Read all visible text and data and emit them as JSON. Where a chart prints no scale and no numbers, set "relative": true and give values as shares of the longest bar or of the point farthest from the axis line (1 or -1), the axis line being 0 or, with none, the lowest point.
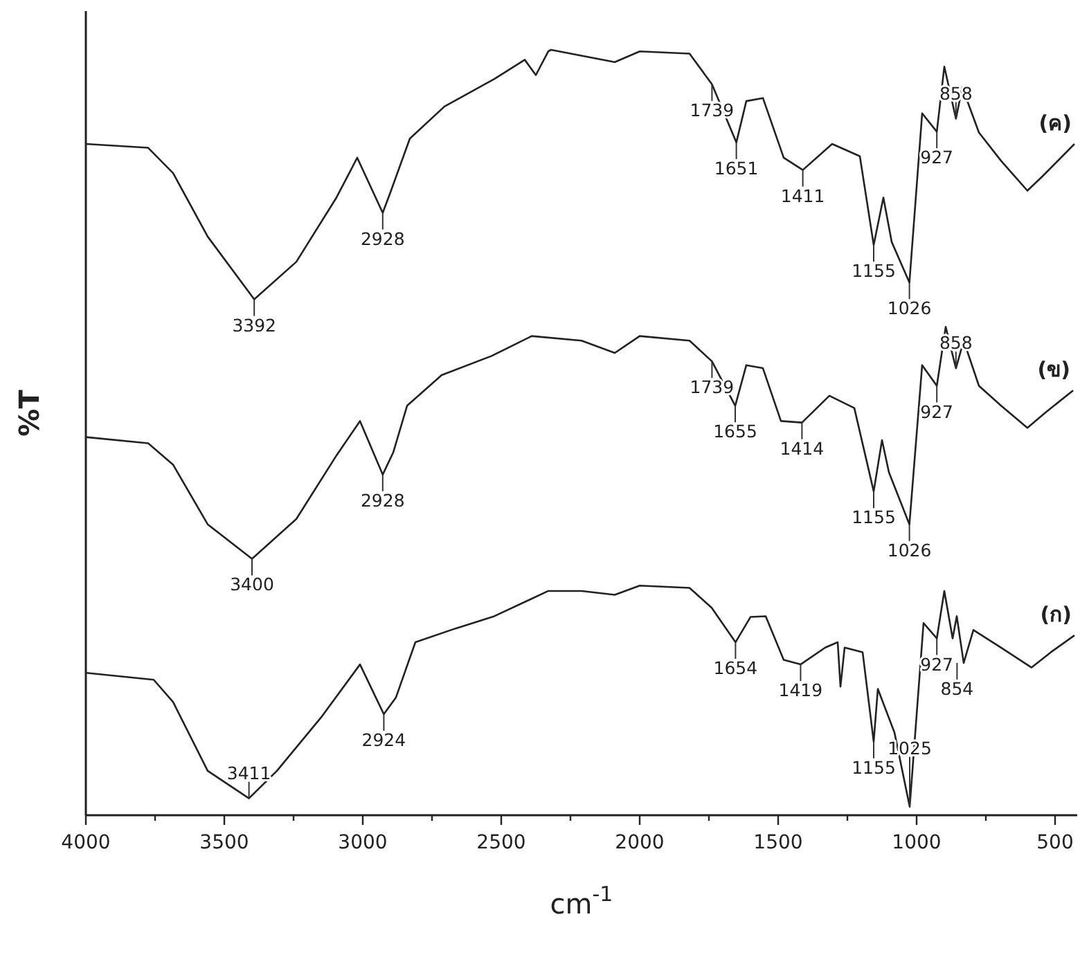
{
  "chart_data": {
    "type": "line",
    "relative": true,
    "xlabel": "cm$^{-1}$",
    "ylabel": "%T",
    "xlim": [
      4000,
      420
    ],
    "xticks": [
      4000,
      {
        "value": 3750,
        "label": null
      },
      3500,
      {
        "value": 3250,
        "label": null
      },
      3000,
      {
        "value": 2750,
        "label": null
      },
      2500,
      {
        "value": 2250,
        "label": null
      },
      2000,
      {
        "value": 1750,
        "label": null
      },
      1500,
      {
        "value": 1250,
        "label": null
      },
      1000,
      {
        "value": 750,
        "label": null
      },
      500
    ],
    "series": [
      {
        "name": "(ค)",
        "color": "#222222",
        "x": [
          4000,
          3775,
          3685,
          3560,
          3392,
          3240,
          3095,
          3020,
          2928,
          2900,
          2830,
          2705,
          2525,
          2415,
          2375,
          2330,
          2320,
          2090,
          2000,
          1820,
          1739,
          1651,
          1615,
          1555,
          1480,
          1411,
          1305,
          1205,
          1155,
          1120,
          1090,
          1026,
          980,
          927,
          900,
          858,
          835,
          775,
          695,
          600,
          545,
          430
        ],
        "values": [
          0.877,
          0.872,
          0.839,
          0.756,
          0.674,
          0.723,
          0.807,
          0.859,
          0.787,
          0.814,
          0.884,
          0.926,
          0.962,
          0.987,
          0.967,
          0.998,
          1.0,
          0.984,
          0.998,
          0.995,
          0.955,
          0.879,
          0.933,
          0.937,
          0.859,
          0.843,
          0.877,
          0.861,
          0.745,
          0.807,
          0.749,
          0.696,
          0.917,
          0.893,
          0.978,
          0.91,
          0.951,
          0.892,
          0.855,
          0.816,
          0.835,
          0.877
        ]
      },
      {
        "name": "(ข)",
        "color": "#222222",
        "x": [
          4000,
          3775,
          3685,
          3560,
          3400,
          3240,
          3095,
          3010,
          2928,
          2890,
          2840,
          2715,
          2535,
          2390,
          2210,
          2090,
          2000,
          1820,
          1739,
          1655,
          1615,
          1555,
          1490,
          1414,
          1315,
          1225,
          1155,
          1125,
          1100,
          1026,
          980,
          927,
          895,
          858,
          830,
          775,
          695,
          600,
          535,
          435
        ],
        "values": [
          0.494,
          0.486,
          0.458,
          0.38,
          0.335,
          0.387,
          0.47,
          0.515,
          0.445,
          0.474,
          0.535,
          0.575,
          0.6,
          0.626,
          0.62,
          0.604,
          0.626,
          0.62,
          0.593,
          0.535,
          0.588,
          0.584,
          0.515,
          0.513,
          0.548,
          0.532,
          0.423,
          0.49,
          0.448,
          0.38,
          0.588,
          0.561,
          0.638,
          0.584,
          0.62,
          0.561,
          0.535,
          0.506,
          0.526,
          0.555
        ]
      },
      {
        "name": "(ก)",
        "color": "#222222",
        "x": [
          4000,
          3755,
          3685,
          3560,
          3411,
          3310,
          3150,
          3010,
          2924,
          2880,
          2810,
          2665,
          2525,
          2330,
          2210,
          2090,
          2000,
          1820,
          1740,
          1654,
          1600,
          1545,
          1480,
          1419,
          1330,
          1285,
          1275,
          1260,
          1195,
          1155,
          1140,
          1080,
          1025,
          975,
          927,
          900,
          870,
          855,
          830,
          795,
          695,
          585,
          515,
          430
        ],
        "values": [
          0.186,
          0.177,
          0.148,
          0.058,
          0.022,
          0.058,
          0.128,
          0.197,
          0.132,
          0.154,
          0.226,
          0.244,
          0.26,
          0.293,
          0.293,
          0.288,
          0.3,
          0.297,
          0.271,
          0.226,
          0.259,
          0.26,
          0.203,
          0.197,
          0.219,
          0.226,
          0.168,
          0.219,
          0.213,
          0.096,
          0.165,
          0.108,
          0.011,
          0.251,
          0.231,
          0.293,
          0.231,
          0.26,
          0.199,
          0.242,
          0.219,
          0.193,
          0.213,
          0.235
        ]
      }
    ],
    "annotations": [
      {
        "text": "3392",
        "x": 3392,
        "y": 0.674
      },
      {
        "text": "2928",
        "x": 2928,
        "y": 0.787
      },
      {
        "text": "1739",
        "x": 1739,
        "y": 0.955
      },
      {
        "text": "1651",
        "x": 1651,
        "y": 0.879
      },
      {
        "text": "1411",
        "x": 1411,
        "y": 0.843
      },
      {
        "text": "1155",
        "x": 1155,
        "y": 0.745
      },
      {
        "text": "1026",
        "x": 1026,
        "y": 0.696
      },
      {
        "text": "927",
        "x": 927,
        "y": 0.893
      },
      {
        "text": "858",
        "x": 858,
        "y": 0.91
      },
      {
        "text": "3400",
        "x": 3400,
        "y": 0.335
      },
      {
        "text": "2928",
        "x": 2928,
        "y": 0.445
      },
      {
        "text": "1739",
        "x": 1739,
        "y": 0.593
      },
      {
        "text": "1655",
        "x": 1655,
        "y": 0.535
      },
      {
        "text": "1414",
        "x": 1414,
        "y": 0.513
      },
      {
        "text": "1155",
        "x": 1155,
        "y": 0.423
      },
      {
        "text": "1026",
        "x": 1026,
        "y": 0.38
      },
      {
        "text": "927",
        "x": 927,
        "y": 0.561
      },
      {
        "text": "858",
        "x": 858,
        "y": 0.584
      },
      {
        "text": "3411",
        "x": 3411,
        "y": 0.022
      },
      {
        "text": "2924",
        "x": 2924,
        "y": 0.132
      },
      {
        "text": "1654",
        "x": 1654,
        "y": 0.226
      },
      {
        "text": "1419",
        "x": 1419,
        "y": 0.197
      },
      {
        "text": "1155",
        "x": 1155,
        "y": 0.096
      },
      {
        "text": "1025",
        "x": 1025,
        "y": 0.011
      },
      {
        "text": "927",
        "x": 927,
        "y": 0.231
      },
      {
        "text": "854",
        "x": 854,
        "y": 0.199
      }
    ]
  }
}
